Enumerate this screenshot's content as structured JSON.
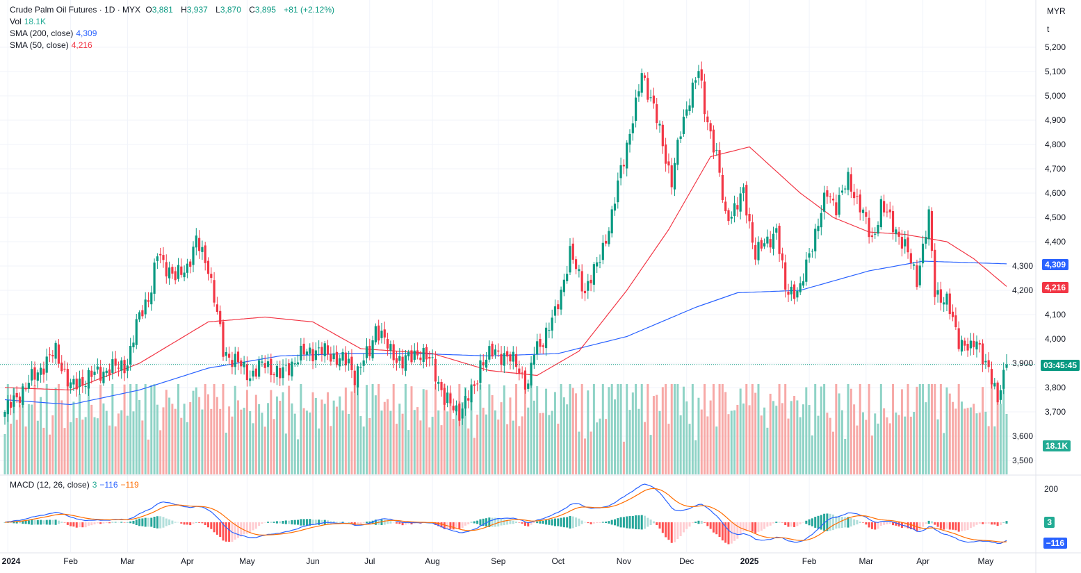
{
  "header": {
    "symbol": "Crude Palm Oil Futures · 1D · MYX",
    "open_label": "O",
    "open": "3,881",
    "high_label": "H",
    "high": "3,937",
    "low_label": "L",
    "low": "3,870",
    "close_label": "C",
    "close": "3,895",
    "change": "+81 (+2.12%)",
    "vol_label": "Vol",
    "vol": "18.1K",
    "sma200_label": "SMA (200, close)",
    "sma200": "4,309",
    "sma50_label": "SMA (50, close)",
    "sma50": "4,216",
    "macd_label": "MACD (12, 26, close)",
    "macd_hist": "3",
    "macd": "−116",
    "macd_signal": "−119"
  },
  "axis": {
    "currency": "MYR",
    "unit": "t",
    "countdown": "03:45:45",
    "vol_tag": "18.1K",
    "sma200_tag": "4,309",
    "sma50_tag": "4,216",
    "macd_hist_tag": "3",
    "macd_tag": "−116",
    "macd_tick": "200"
  },
  "colors": {
    "up": "#089981",
    "down": "#f23645",
    "sma200": "#2962ff",
    "sma50": "#f23645",
    "macd": "#2962ff",
    "signal": "#ff6d00"
  },
  "chart_data": {
    "type": "candlestick",
    "title": "Crude Palm Oil Futures · 1D · MYX",
    "ylim": [
      3450,
      5230
    ],
    "price_ticks": [
      "3,500",
      "3,600",
      "3,700",
      "3,800",
      "3,900",
      "4,000",
      "4,100",
      "4,200",
      "4,300",
      "4,400",
      "4,500",
      "4,600",
      "4,700",
      "4,800",
      "4,900",
      "5,000",
      "5,100",
      "5,200"
    ],
    "price_tick_values": [
      3500,
      3600,
      3700,
      3800,
      3900,
      4000,
      4100,
      4200,
      4300,
      4400,
      4500,
      4600,
      4700,
      4800,
      4900,
      5000,
      5100,
      5200
    ],
    "time_ticks": [
      {
        "label": "2024",
        "bar": 1
      },
      {
        "label": "Feb",
        "bar": 22
      },
      {
        "label": "Mar",
        "bar": 41
      },
      {
        "label": "Apr",
        "bar": 61
      },
      {
        "label": "May",
        "bar": 81
      },
      {
        "label": "Jun",
        "bar": 103
      },
      {
        "label": "Jul",
        "bar": 122
      },
      {
        "label": "Aug",
        "bar": 143
      },
      {
        "label": "Sep",
        "bar": 165
      },
      {
        "label": "Oct",
        "bar": 185
      },
      {
        "label": "Nov",
        "bar": 207
      },
      {
        "label": "Dec",
        "bar": 228
      },
      {
        "label": "2025",
        "bar": 249
      },
      {
        "label": "Feb",
        "bar": 269
      },
      {
        "label": "Mar",
        "bar": 288
      },
      {
        "label": "Apr",
        "bar": 307
      },
      {
        "label": "May",
        "bar": 328
      }
    ],
    "total_bars": 336,
    "close_anchors": [
      [
        0,
        3700
      ],
      [
        10,
        3850
      ],
      [
        17,
        3950
      ],
      [
        22,
        3800
      ],
      [
        29,
        3850
      ],
      [
        41,
        3900
      ],
      [
        45,
        4100
      ],
      [
        49,
        4200
      ],
      [
        51,
        4350
      ],
      [
        57,
        4250
      ],
      [
        61,
        4300
      ],
      [
        64,
        4400
      ],
      [
        68,
        4300
      ],
      [
        71,
        4100
      ],
      [
        73,
        3950
      ],
      [
        78,
        3900
      ],
      [
        82,
        3850
      ],
      [
        87,
        3900
      ],
      [
        92,
        3850
      ],
      [
        96,
        3900
      ],
      [
        101,
        3950
      ],
      [
        106,
        3950
      ],
      [
        115,
        3900
      ],
      [
        117,
        3850
      ],
      [
        122,
        3950
      ],
      [
        124,
        4050
      ],
      [
        129,
        3950
      ],
      [
        133,
        3900
      ],
      [
        138,
        3950
      ],
      [
        143,
        3900
      ],
      [
        147,
        3750
      ],
      [
        152,
        3700
      ],
      [
        157,
        3800
      ],
      [
        159,
        3900
      ],
      [
        164,
        3950
      ],
      [
        171,
        3900
      ],
      [
        175,
        3800
      ],
      [
        177,
        3950
      ],
      [
        180,
        4000
      ],
      [
        184,
        4100
      ],
      [
        189,
        4350
      ],
      [
        194,
        4200
      ],
      [
        198,
        4300
      ],
      [
        203,
        4500
      ],
      [
        206,
        4700
      ],
      [
        208,
        4800
      ],
      [
        211,
        4950
      ],
      [
        213,
        5100
      ],
      [
        217,
        4950
      ],
      [
        220,
        4800
      ],
      [
        223,
        4650
      ],
      [
        226,
        4850
      ],
      [
        229,
        5000
      ],
      [
        232,
        5100
      ],
      [
        234,
        4950
      ],
      [
        238,
        4750
      ],
      [
        241,
        4500
      ],
      [
        245,
        4550
      ],
      [
        247,
        4600
      ],
      [
        251,
        4350
      ],
      [
        255,
        4400
      ],
      [
        258,
        4450
      ],
      [
        261,
        4200
      ],
      [
        266,
        4200
      ],
      [
        270,
        4400
      ],
      [
        275,
        4600
      ],
      [
        278,
        4550
      ],
      [
        282,
        4650
      ],
      [
        286,
        4550
      ],
      [
        290,
        4400
      ],
      [
        293,
        4550
      ],
      [
        298,
        4450
      ],
      [
        302,
        4350
      ],
      [
        305,
        4250
      ],
      [
        309,
        4500
      ],
      [
        311,
        4200
      ],
      [
        315,
        4150
      ],
      [
        319,
        4000
      ],
      [
        323,
        3950
      ],
      [
        325,
        4000
      ],
      [
        328,
        3900
      ],
      [
        332,
        3750
      ],
      [
        333,
        3820
      ],
      [
        335,
        3895
      ]
    ],
    "last_candle": {
      "open": 3881,
      "high": 3937,
      "low": 3870,
      "close": 3895,
      "volume": "18.1K"
    },
    "sma50_anchors": [
      [
        0,
        3800
      ],
      [
        22,
        3790
      ],
      [
        45,
        3900
      ],
      [
        68,
        4070
      ],
      [
        87,
        4090
      ],
      [
        103,
        4070
      ],
      [
        119,
        3960
      ],
      [
        143,
        3940
      ],
      [
        162,
        3870
      ],
      [
        178,
        3850
      ],
      [
        192,
        3950
      ],
      [
        208,
        4200
      ],
      [
        222,
        4450
      ],
      [
        236,
        4750
      ],
      [
        249,
        4790
      ],
      [
        266,
        4600
      ],
      [
        277,
        4500
      ],
      [
        289,
        4440
      ],
      [
        301,
        4430
      ],
      [
        315,
        4400
      ],
      [
        324,
        4330
      ],
      [
        335,
        4216
      ]
    ],
    "sma200_anchors": [
      [
        0,
        3750
      ],
      [
        22,
        3730
      ],
      [
        45,
        3790
      ],
      [
        68,
        3880
      ],
      [
        92,
        3930
      ],
      [
        115,
        3940
      ],
      [
        138,
        3940
      ],
      [
        162,
        3930
      ],
      [
        185,
        3940
      ],
      [
        208,
        4010
      ],
      [
        231,
        4130
      ],
      [
        245,
        4190
      ],
      [
        266,
        4200
      ],
      [
        289,
        4280
      ],
      [
        307,
        4320
      ],
      [
        335,
        4309
      ]
    ],
    "macd": {
      "fast": 12,
      "slow": 26,
      "signal": 9,
      "tick": 200
    }
  }
}
